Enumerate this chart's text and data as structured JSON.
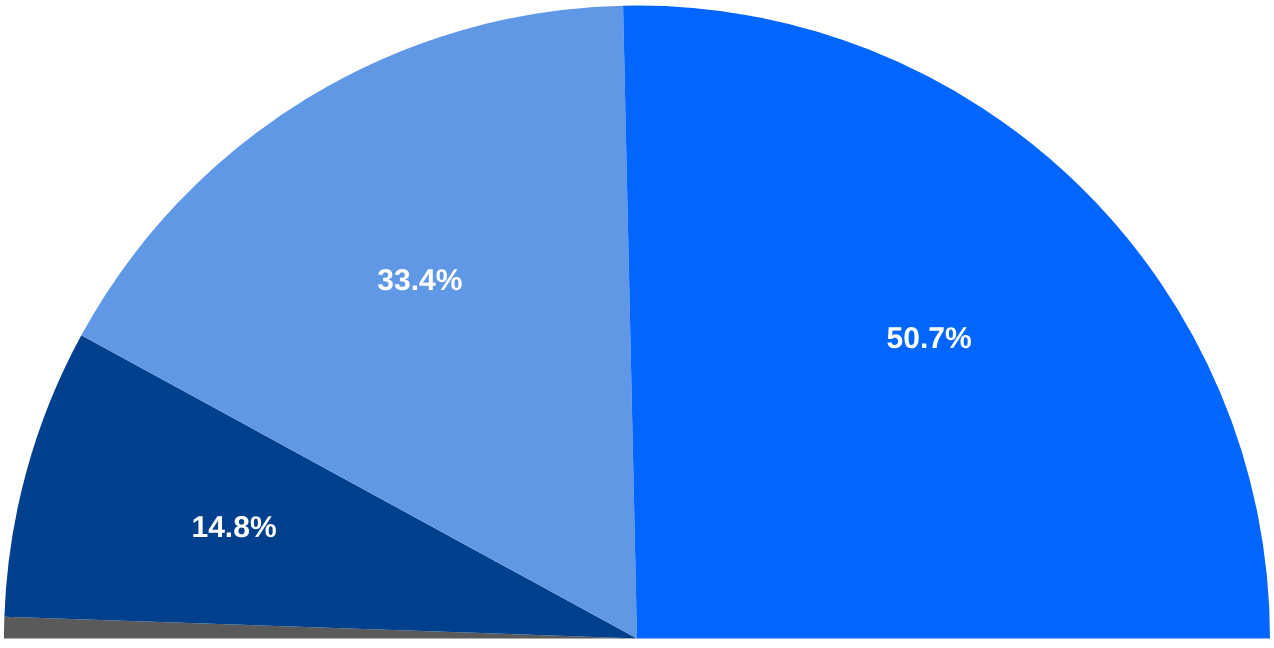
{
  "chart_data": {
    "type": "pie",
    "categories": [
      null,
      null,
      null,
      null
    ],
    "values": [
      1.1,
      14.8,
      33.4,
      50.7
    ],
    "colors": [
      "#5a5a5a",
      "#00408c",
      "#6198e6",
      "#0066ff"
    ],
    "value_labels": [
      null,
      "14.8%",
      "33.4%",
      "50.7%"
    ],
    "legend": false
  }
}
